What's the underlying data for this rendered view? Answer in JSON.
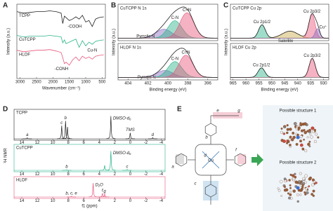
{
  "panel_labels": [
    "A",
    "B",
    "C",
    "D",
    "E"
  ],
  "chart_data": [
    {
      "type": "line",
      "xlabel": "Wavenumber (cm⁻¹)",
      "ylabel": "Intensity (a.u.)",
      "xlim": [
        3100,
        400
      ],
      "ylim": [
        0,
        100
      ],
      "xticks": [
        3000,
        2500,
        2000,
        1500,
        1000,
        500
      ],
      "x": [
        3100,
        2900,
        2700,
        2500,
        2300,
        2100,
        1900,
        1750,
        1700,
        1650,
        1600,
        1500,
        1400,
        1300,
        1200,
        1100,
        1000,
        900,
        800,
        700,
        600,
        450
      ],
      "series": [
        {
          "name": "TCPP",
          "color": "#222222",
          "values": [
            90,
            88,
            89,
            90,
            90,
            91,
            90,
            88,
            74,
            84,
            82,
            78,
            80,
            83,
            80,
            85,
            76,
            78,
            70,
            80,
            82,
            83
          ]
        },
        {
          "name": "CuTCPP",
          "color": "#2bb38a",
          "values": [
            58,
            56,
            57,
            57,
            57,
            58,
            57,
            56,
            48,
            52,
            47,
            49,
            51,
            53,
            42,
            51,
            44,
            49,
            46,
            50,
            51,
            52
          ]
        },
        {
          "name": "HLOF",
          "color": "#e8557a",
          "values": [
            38,
            36,
            37,
            38,
            38,
            39,
            37,
            35,
            28,
            20,
            22,
            18,
            25,
            29,
            24,
            30,
            27,
            29,
            26,
            30,
            31,
            32
          ]
        }
      ],
      "annotations": [
        "-COOH",
        "Cu-N",
        "-CONH"
      ]
    },
    {
      "type": "peak-fit",
      "title": "CuTCPP N 1s",
      "title_color": "#2bb38a",
      "ylabel": "Intensity (a.u.)",
      "xlim": [
        405,
        395
      ],
      "ylim": [
        0,
        1.15
      ],
      "baseline": 0.08,
      "envelope_color": "#222222",
      "components": [
        {
          "name": "Pyrrolic N",
          "color": "#8a6bbf",
          "center": 400.4,
          "height": 0.28,
          "width": 0.8
        },
        {
          "name": "C-N",
          "color": "#2bb38a",
          "center": 399.3,
          "height": 0.55,
          "width": 0.7
        },
        {
          "name": "C=N",
          "color": "#e8557a",
          "center": 398.1,
          "height": 0.8,
          "width": 0.7
        }
      ]
    },
    {
      "type": "peak-fit",
      "title": "HLOF N 1s",
      "title_color": "#e8557a",
      "xlabel": "Binding energy (eV)",
      "xlim": [
        405,
        395
      ],
      "ylim": [
        0,
        1.15
      ],
      "xticks": [
        404,
        402,
        400,
        398,
        396
      ],
      "baseline": 0.08,
      "envelope_color": "#222222",
      "components": [
        {
          "name": "Pyrrolic N",
          "color": "#8a6bbf",
          "center": 400.3,
          "height": 0.22,
          "width": 0.8
        },
        {
          "name": "C-N",
          "color": "#2bb38a",
          "center": 399.3,
          "height": 0.5,
          "width": 0.7
        },
        {
          "name": "C=N",
          "color": "#e8557a",
          "center": 398.2,
          "height": 0.7,
          "width": 0.7
        }
      ]
    },
    {
      "type": "peak-fit",
      "title": "CuTCPP Cu 2p",
      "title_color": "#2bb38a",
      "ylabel": "Intensity (a.u.)",
      "xlim": [
        966,
        928
      ],
      "ylim": [
        0,
        1.15
      ],
      "baseline": 0.08,
      "envelope_color": "#222222",
      "components": [
        {
          "name": "Cu 2p1/2",
          "color": "#2bb38a",
          "center": 953.8,
          "height": 0.42,
          "width": 1.3
        },
        {
          "name": "Satellite",
          "color": "#c9a94a",
          "center": 943,
          "height": 0.22,
          "width": 3
        },
        {
          "name": "Cu 2p3/2",
          "color": "#e8557a",
          "center": 934.5,
          "height": 0.75,
          "width": 1.2
        },
        {
          "name": "Cu⁺",
          "color": "#8a6bbf",
          "center": 932.4,
          "height": 0.3,
          "width": 0.9
        }
      ]
    },
    {
      "type": "peak-fit",
      "title": "HLOF Cu 2p",
      "title_color": "#e8557a",
      "xlabel": "Binding energy (eV)",
      "xlim": [
        966,
        928
      ],
      "ylim": [
        0,
        1.15
      ],
      "xticks": [
        965,
        960,
        955,
        950,
        945,
        940,
        935,
        930
      ],
      "baseline": 0.08,
      "envelope_color": "#222222",
      "components": [
        {
          "name": "Cu 2p1/2",
          "color": "#2bb38a",
          "center": 954,
          "height": 0.3,
          "width": 1.3
        },
        {
          "name": "Cu 2p3/2",
          "color": "#e8557a",
          "center": 934.4,
          "height": 0.6,
          "width": 1.2
        }
      ]
    },
    {
      "type": "nmr",
      "xlabel": "f1 (ppm)",
      "ylabel": "¹H NMR",
      "xlim": [
        15,
        -4.5
      ],
      "xticks": [
        14,
        12,
        10,
        8,
        6,
        4,
        2,
        0,
        -2,
        -4
      ],
      "series": [
        {
          "name": "TCPP",
          "color": "#222222",
          "peaks": [
            {
              "x": 13.3,
              "height": 0.04,
              "label": "a"
            },
            {
              "x": 8.85,
              "height": 0.55,
              "label": "c"
            },
            {
              "x": 8.35,
              "height": 0.75,
              "label": "b"
            },
            {
              "x": 8.1,
              "height": 0.5
            },
            {
              "x": 2.5,
              "height": 0.95,
              "label": "DMSO-d₆"
            },
            {
              "x": 0,
              "height": 0.25,
              "label": "TMS"
            },
            {
              "x": -2.9,
              "height": 0.05,
              "label": "d"
            }
          ]
        },
        {
          "name": "CuTCPP",
          "color": "#2bb38a",
          "peaks": [
            {
              "x": 8.2,
              "height": 0.03,
              "label": "b"
            },
            {
              "x": 3.3,
              "height": 0.25
            },
            {
              "x": 2.5,
              "height": 0.95,
              "label": "DMSO-d₆"
            },
            {
              "x": 0.4,
              "height": 0.04,
              "label": "c"
            }
          ]
        },
        {
          "name": "HLOF",
          "color": "#e8557a",
          "peaks": [
            {
              "x": 7.6,
              "height": 0.05,
              "label": "b, c, e"
            },
            {
              "x": 4.79,
              "height": 0.95,
              "label": "D₂O"
            },
            {
              "x": 3.6,
              "height": 0.25,
              "label": "f"
            },
            {
              "x": 3.3,
              "height": 0.2,
              "label": "g"
            }
          ]
        }
      ]
    }
  ],
  "diagram": {
    "labels": [
      "a",
      "b",
      "c",
      "d",
      "e",
      "f",
      "g",
      "Cu"
    ],
    "structures": [
      "Possible structure 1",
      "Possible structure 2"
    ]
  }
}
